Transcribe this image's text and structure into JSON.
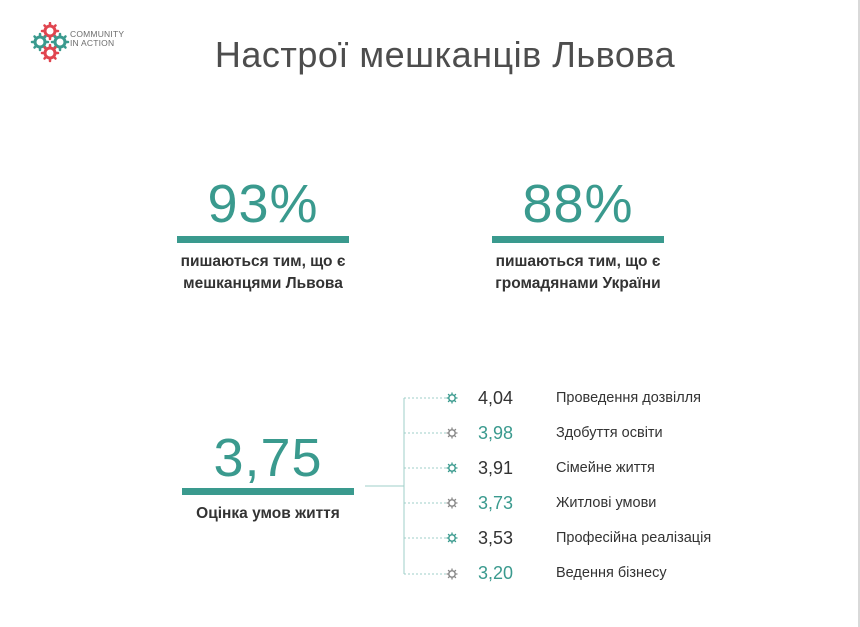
{
  "logo": {
    "line1": "COMMUNITY",
    "line2": "IN ACTION"
  },
  "title": "Настрої мешканців Львова",
  "stats": [
    {
      "value": "93%",
      "caption1": "пишаються тим, що є",
      "caption2": "мешканцями Львова"
    },
    {
      "value": "88%",
      "caption1": "пишаються тим, що є",
      "caption2": "громадянами України"
    }
  ],
  "rating": {
    "value": "3,75",
    "caption": "Оцінка умов життя"
  },
  "breakdown": [
    {
      "value": "4,04",
      "label": "Проведення дозвілля"
    },
    {
      "value": "3,98",
      "label": "Здобуття освіти"
    },
    {
      "value": "3,91",
      "label": "Сімейне життя"
    },
    {
      "value": "3,73",
      "label": "Житлові умови"
    },
    {
      "value": "3,53",
      "label": "Професійна реалізація"
    },
    {
      "value": "3,20",
      "label": "Ведення бізнесу"
    }
  ],
  "colors": {
    "accent": "#3a9a8e",
    "logo_red": "#e0454f",
    "text": "#333333",
    "title": "#4d4d4d"
  },
  "icons": {
    "logo": "gears-icon",
    "bullet": "gear-icon"
  }
}
